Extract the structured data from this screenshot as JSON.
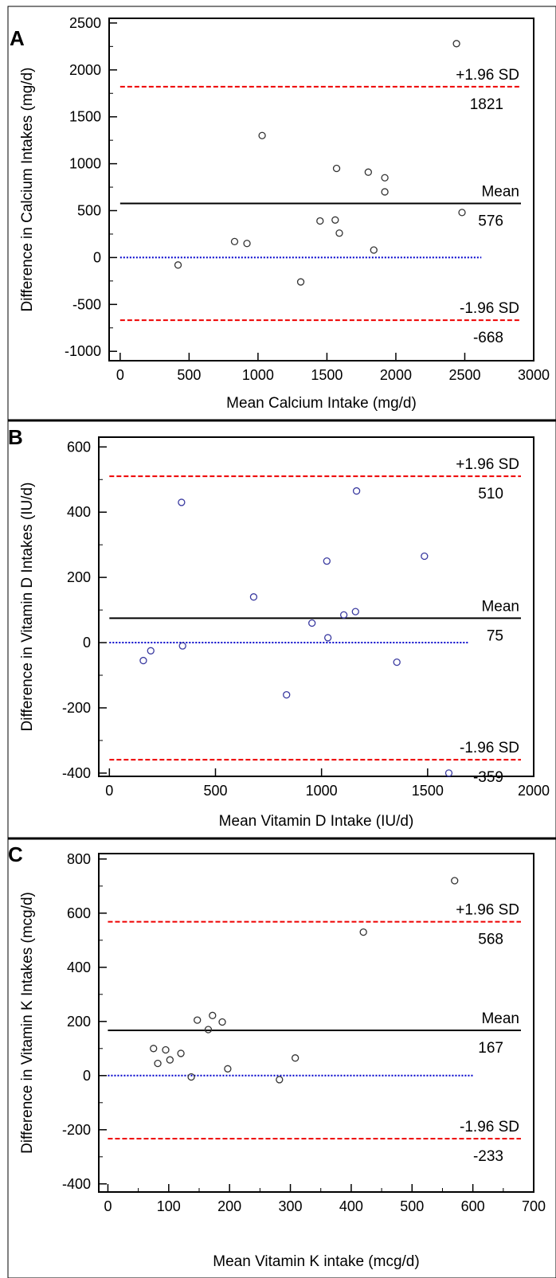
{
  "chart_data": [
    {
      "type": "scatter",
      "panel_label": "A",
      "xlabel": "Mean Calcium Intake (mg/d)",
      "ylabel": "Difference in Calcium Intakes (mg/d)",
      "xlim": [
        -80,
        3000
      ],
      "ylim": [
        -1100,
        2550
      ],
      "xticks": [
        0,
        500,
        1000,
        1500,
        2000,
        2500,
        3000
      ],
      "yticks": [
        -1000,
        -500,
        0,
        500,
        1000,
        1500,
        2000,
        2500
      ],
      "y_minor_ticks": true,
      "x_minor_ticks": false,
      "grid": false,
      "point_color": "#333333",
      "points": [
        {
          "x": 420,
          "y": -80
        },
        {
          "x": 830,
          "y": 170
        },
        {
          "x": 920,
          "y": 150
        },
        {
          "x": 1030,
          "y": 1300
        },
        {
          "x": 1310,
          "y": -260
        },
        {
          "x": 1450,
          "y": 390
        },
        {
          "x": 1560,
          "y": 400
        },
        {
          "x": 1570,
          "y": 950
        },
        {
          "x": 1590,
          "y": 260
        },
        {
          "x": 1800,
          "y": 910
        },
        {
          "x": 1840,
          "y": 80
        },
        {
          "x": 1920,
          "y": 850
        },
        {
          "x": 1920,
          "y": 700
        },
        {
          "x": 2440,
          "y": 2280
        },
        {
          "x": 2480,
          "y": 480
        }
      ],
      "zero_line": {
        "y": 0,
        "x_range": [
          0,
          2620
        ],
        "color": "#0000cc"
      },
      "mean_line": {
        "label": "Mean",
        "value_text": "576",
        "y": 576,
        "color": "#000000"
      },
      "upper_line": {
        "label": "+1.96 SD",
        "value_text": "1821",
        "y": 1821,
        "color": "#ee0000"
      },
      "lower_line": {
        "label": "-1.96 SD",
        "value_text": "-668",
        "y": -668,
        "color": "#ee0000"
      }
    },
    {
      "type": "scatter",
      "panel_label": "B",
      "xlabel": "Mean Vitamin D Intake (IU/d)",
      "ylabel": "Difference in Vitamin D Intakes (IU/d)",
      "xlim": [
        -50,
        2000
      ],
      "ylim": [
        -410,
        630
      ],
      "xticks": [
        0,
        500,
        1000,
        1500,
        2000
      ],
      "yticks": [
        -400,
        -200,
        0,
        200,
        400,
        600
      ],
      "y_minor_ticks": true,
      "x_minor_ticks": false,
      "grid": false,
      "point_color": "#3a3aa0",
      "points": [
        {
          "x": 160,
          "y": -55
        },
        {
          "x": 195,
          "y": -25
        },
        {
          "x": 340,
          "y": 430
        },
        {
          "x": 345,
          "y": -10
        },
        {
          "x": 680,
          "y": 140
        },
        {
          "x": 835,
          "y": -160
        },
        {
          "x": 955,
          "y": 60
        },
        {
          "x": 1025,
          "y": 250
        },
        {
          "x": 1030,
          "y": 15
        },
        {
          "x": 1105,
          "y": 85
        },
        {
          "x": 1160,
          "y": 95
        },
        {
          "x": 1165,
          "y": 465
        },
        {
          "x": 1355,
          "y": -60
        },
        {
          "x": 1485,
          "y": 265
        },
        {
          "x": 1600,
          "y": -400
        }
      ],
      "zero_line": {
        "y": 0,
        "x_range": [
          0,
          1690
        ],
        "color": "#0000cc"
      },
      "mean_line": {
        "label": "Mean",
        "value_text": "75",
        "y": 75,
        "color": "#000000"
      },
      "upper_line": {
        "label": "+1.96 SD",
        "value_text": "510",
        "y": 510,
        "color": "#ee0000"
      },
      "lower_line": {
        "label": "-1.96 SD",
        "value_text": "-359",
        "y": -359,
        "color": "#ee0000"
      }
    },
    {
      "type": "scatter",
      "panel_label": "C",
      "xlabel": "Mean Vitamin K intake (mcg/d)",
      "ylabel": "Difference in Vitamin K Intakes (mcg/d)",
      "xlim": [
        -15,
        700
      ],
      "ylim": [
        -430,
        820
      ],
      "xticks": [
        0,
        100,
        200,
        300,
        400,
        500,
        600,
        700
      ],
      "yticks": [
        -400,
        -200,
        0,
        200,
        400,
        600,
        800
      ],
      "y_minor_ticks": true,
      "x_minor_ticks": true,
      "grid": false,
      "point_color": "#333333",
      "points": [
        {
          "x": 75,
          "y": 100
        },
        {
          "x": 82,
          "y": 45
        },
        {
          "x": 95,
          "y": 95
        },
        {
          "x": 102,
          "y": 58
        },
        {
          "x": 120,
          "y": 82
        },
        {
          "x": 137,
          "y": -5
        },
        {
          "x": 147,
          "y": 205
        },
        {
          "x": 165,
          "y": 170
        },
        {
          "x": 172,
          "y": 222
        },
        {
          "x": 188,
          "y": 198
        },
        {
          "x": 197,
          "y": 25
        },
        {
          "x": 282,
          "y": -15
        },
        {
          "x": 308,
          "y": 65
        },
        {
          "x": 420,
          "y": 530
        },
        {
          "x": 570,
          "y": 720
        }
      ],
      "zero_line": {
        "y": 0,
        "x_range": [
          0,
          600
        ],
        "color": "#0000cc"
      },
      "mean_line": {
        "label": "Mean",
        "value_text": "167",
        "y": 167,
        "color": "#000000"
      },
      "upper_line": {
        "label": "+1.96 SD",
        "value_text": "568",
        "y": 568,
        "color": "#ee0000"
      },
      "lower_line": {
        "label": "-1.96 SD",
        "value_text": "-233",
        "y": -233,
        "color": "#ee0000"
      }
    }
  ]
}
